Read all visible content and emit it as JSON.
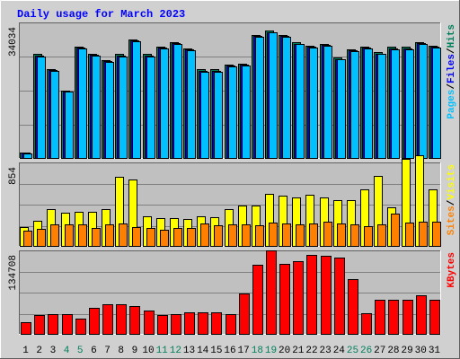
{
  "chart_data": {
    "type": "bar",
    "title": "Daily usage for March 2023",
    "categories": [
      "1",
      "2",
      "3",
      "4",
      "5",
      "6",
      "7",
      "8",
      "9",
      "10",
      "11",
      "12",
      "13",
      "14",
      "15",
      "16",
      "17",
      "18",
      "19",
      "20",
      "21",
      "22",
      "23",
      "24",
      "25",
      "26",
      "27",
      "28",
      "29",
      "30",
      "31"
    ],
    "weekend_days": [
      "4",
      "5",
      "11",
      "12",
      "18",
      "19",
      "25",
      "26"
    ],
    "colors": {
      "hits": "#00805c",
      "files": "#0000ff",
      "pages": "#00c0ff",
      "visits": "#ffff00",
      "sites": "#ff8000",
      "kbytes": "#ff0000",
      "title": "#0000ff",
      "plot_bg": "#c0c0c0",
      "frame_bg": "#d0d0d0"
    },
    "panels": [
      {
        "id": "hits-panel",
        "ymax_label": "34034",
        "ymax": 34034,
        "legend": [
          {
            "text": "Pages",
            "color": "#00c0ff"
          },
          {
            "text": "/",
            "color": "#000000"
          },
          {
            "text": "Files",
            "color": "#0000ff"
          },
          {
            "text": "/",
            "color": "#000000"
          },
          {
            "text": "Hits",
            "color": "#00805c"
          }
        ],
        "series": [
          {
            "name": "Hits",
            "color": "#00805c",
            "values": [
              1400,
              27300,
              23500,
              17800,
              29400,
              27400,
              25800,
              27300,
              31200,
              27300,
              29300,
              30600,
              28800,
              23300,
              23300,
              24600,
              24900,
              32400,
              33500,
              32400,
              30400,
              29500,
              30100,
              26400,
              28700,
              29300,
              27800,
              29200,
              29200,
              30500,
              29500
            ]
          },
          {
            "name": "Files",
            "color": "#0000ff",
            "values": [
              1300,
              27000,
              23200,
              17600,
              29100,
              27100,
              25500,
              27000,
              30900,
              27000,
              29000,
              30300,
              28500,
              23000,
              23000,
              24300,
              24600,
              32100,
              33200,
              32100,
              30100,
              29200,
              29800,
              26100,
              28400,
              29000,
              27500,
              28900,
              28900,
              30200,
              29200
            ]
          },
          {
            "name": "Pages",
            "color": "#00c0ff",
            "values": [
              1200,
              26800,
              23000,
              17400,
              28900,
              26900,
              25300,
              26800,
              30700,
              26800,
              28800,
              30100,
              28300,
              22800,
              22800,
              24100,
              24400,
              31900,
              33000,
              31900,
              29900,
              29000,
              29600,
              25900,
              28200,
              28800,
              27300,
              28700,
              28700,
              30000,
              29000
            ]
          }
        ]
      },
      {
        "id": "visits-panel",
        "ymax_label": "854",
        "ymax": 854,
        "legend": [
          {
            "text": "Sites",
            "color": "#ff8000"
          },
          {
            "text": "/",
            "color": "#000000"
          },
          {
            "text": "Visits",
            "color": "#ffff00"
          }
        ],
        "series": [
          {
            "name": "Visits",
            "color": "#ffff00",
            "values": [
              210,
              280,
              410,
              370,
              380,
              380,
              410,
              760,
              730,
              330,
              310,
              310,
              300,
              330,
              320,
              410,
              450,
              450,
              580,
              560,
              540,
              570,
              540,
              510,
              510,
              630,
              770,
              430,
              960,
              1000,
              630
            ]
          },
          {
            "name": "Sites",
            "color": "#ff8000",
            "values": [
              170,
              190,
              240,
              240,
              240,
              200,
              240,
              250,
              210,
              200,
              180,
              200,
              200,
              250,
              230,
              240,
              240,
              230,
              260,
              250,
              240,
              250,
              270,
              250,
              240,
              220,
              240,
              360,
              260,
              270,
              270
            ]
          }
        ]
      },
      {
        "id": "kbytes-panel",
        "ymax_label": "134708",
        "ymax": 134708,
        "legend": [
          {
            "text": "KBytes",
            "color": "#ff0000"
          }
        ],
        "series": [
          {
            "name": "KBytes",
            "color": "#ff0000",
            "values": [
              21000,
              33000,
              35000,
              35000,
              27000,
              45000,
              52000,
              52000,
              48000,
              40000,
              33000,
              35000,
              37000,
              38000,
              38000,
              35000,
              70000,
              120000,
              145000,
              122000,
              127000,
              138000,
              137000,
              133000,
              95000,
              36000,
              59000,
              59000,
              59000,
              67000,
              59000
            ]
          }
        ]
      }
    ]
  }
}
